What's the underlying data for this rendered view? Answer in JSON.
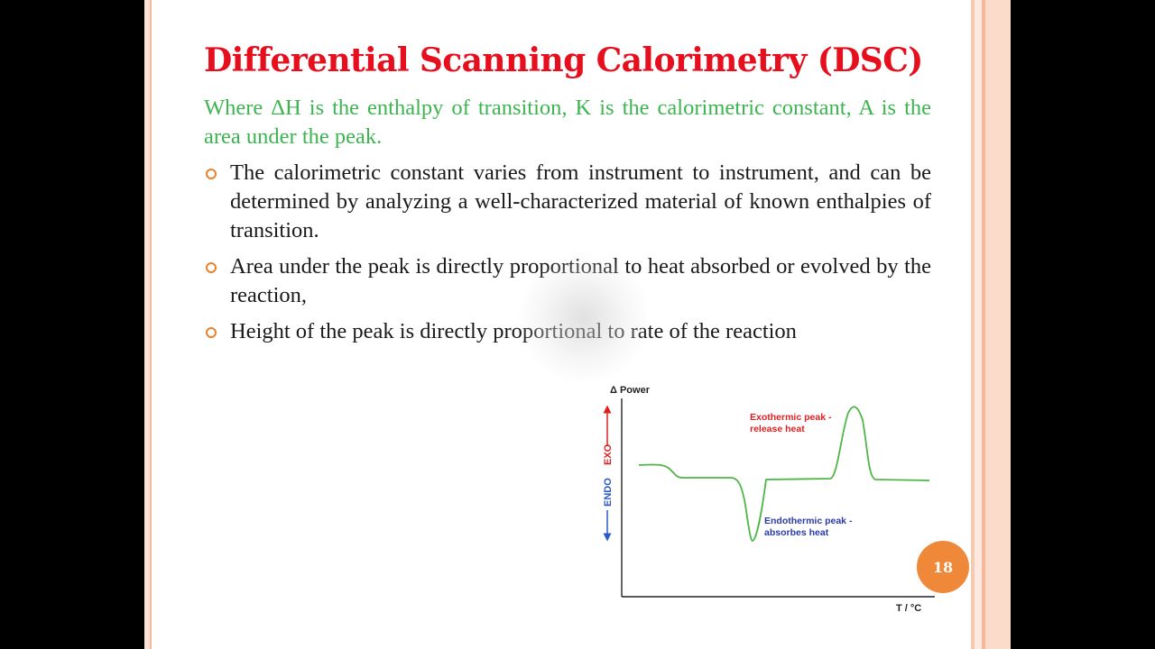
{
  "slide": {
    "title": "Differential Scanning Calorimetry (DSC)",
    "intro": "Where ΔH is the enthalpy of transition, K is the calorimetric constant, A is the area under the peak.",
    "bullets": [
      "The calorimetric constant varies from instrument to instrument, and can be determined by analyzing a well-characterized material of known enthalpies of transition.",
      "Area under the peak is directly proportional to heat absorbed or evolved by the reaction,",
      "Height of the peak is directly proportional to rate of the reaction"
    ],
    "page_number": "18"
  },
  "colors": {
    "title": "#e60f1e",
    "intro": "#3cb550",
    "bullet_marker": "#e8802d",
    "badge": "#f0883a",
    "curve": "#4fb548",
    "exo_annotation": "#e02020",
    "endo_annotation": "#2a3aa8"
  },
  "chart_data": {
    "type": "line",
    "ylabel": "Δ Power",
    "xlabel": "T / °C",
    "y_direction_labels": {
      "up": "EXO",
      "down": "ENDO"
    },
    "annotations": [
      {
        "text": [
          "Exothermic peak -",
          "release heat"
        ],
        "color": "#e02020"
      },
      {
        "text": [
          "Endothermic peak -",
          "absorbes heat"
        ],
        "color": "#2a3aa8"
      }
    ],
    "notes": "Qualitative curve, no numeric ticks"
  }
}
